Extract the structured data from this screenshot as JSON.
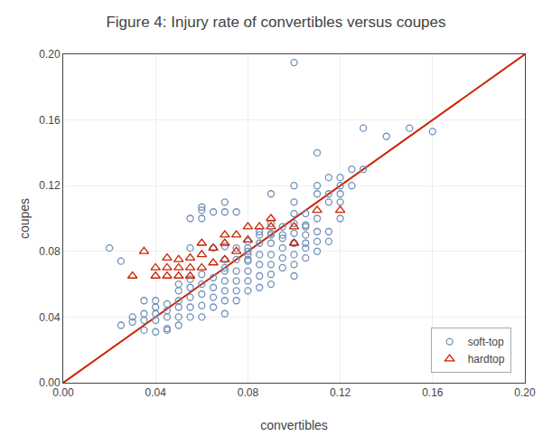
{
  "chart_data": {
    "type": "scatter",
    "title": "Figure 4: Injury rate of convertibles versus coupes",
    "xlabel": "convertibles",
    "ylabel": "coupes",
    "xlim": [
      0.0,
      0.2
    ],
    "ylim": [
      0.0,
      0.2
    ],
    "xticks": [
      {
        "value": 0.0,
        "label": "0.00"
      },
      0.04,
      0.08,
      0.12,
      0.16,
      {
        "value": 0.2,
        "label": "0.20"
      }
    ],
    "yticks": [
      {
        "value": 0.0,
        "label": "0.00"
      },
      0.04,
      0.08,
      0.12,
      0.16,
      {
        "value": 0.2,
        "label": "0.20"
      }
    ],
    "grid": true,
    "legend": "lower right",
    "series": [
      {
        "name": "soft-top",
        "type": "scatter",
        "color": "#7090b8",
        "marker": "circle-open",
        "x": [
          0.02,
          0.025,
          0.03,
          0.03,
          0.035,
          0.035,
          0.035,
          0.04,
          0.04,
          0.04,
          0.04,
          0.04,
          0.045,
          0.045,
          0.045,
          0.045,
          0.05,
          0.05,
          0.05,
          0.05,
          0.05,
          0.05,
          0.055,
          0.055,
          0.055,
          0.055,
          0.055,
          0.055,
          0.06,
          0.06,
          0.06,
          0.06,
          0.06,
          0.06,
          0.065,
          0.065,
          0.065,
          0.065,
          0.065,
          0.07,
          0.07,
          0.07,
          0.07,
          0.07,
          0.07,
          0.07,
          0.07,
          0.075,
          0.075,
          0.075,
          0.075,
          0.075,
          0.075,
          0.08,
          0.08,
          0.08,
          0.08,
          0.08,
          0.08,
          0.08,
          0.085,
          0.085,
          0.085,
          0.085,
          0.085,
          0.085,
          0.09,
          0.09,
          0.09,
          0.09,
          0.09,
          0.09,
          0.09,
          0.09,
          0.095,
          0.095,
          0.095,
          0.095,
          0.095,
          0.1,
          0.1,
          0.1,
          0.1,
          0.1,
          0.1,
          0.1,
          0.1,
          0.1,
          0.105,
          0.105,
          0.105,
          0.105,
          0.105,
          0.11,
          0.11,
          0.11,
          0.11,
          0.11,
          0.115,
          0.115,
          0.115,
          0.12,
          0.12,
          0.12,
          0.12,
          0.125,
          0.125,
          0.13,
          0.13,
          0.14,
          0.15,
          0.16,
          0.11,
          0.1,
          0.08,
          0.06,
          0.055,
          0.045,
          0.07,
          0.075,
          0.065,
          0.085,
          0.09,
          0.095,
          0.105,
          0.11,
          0.115,
          0.105,
          0.115,
          0.12,
          0.1,
          0.06,
          0.07,
          0.08,
          0.025,
          0.035
        ],
        "values": [
          0.082,
          0.074,
          0.04,
          0.037,
          0.038,
          0.042,
          0.05,
          0.038,
          0.042,
          0.046,
          0.05,
          0.031,
          0.04,
          0.044,
          0.048,
          0.033,
          0.035,
          0.04,
          0.046,
          0.05,
          0.056,
          0.06,
          0.04,
          0.046,
          0.052,
          0.058,
          0.063,
          0.1,
          0.04,
          0.047,
          0.054,
          0.06,
          0.066,
          0.105,
          0.046,
          0.052,
          0.058,
          0.064,
          0.104,
          0.042,
          0.05,
          0.056,
          0.062,
          0.068,
          0.075,
          0.083,
          0.11,
          0.05,
          0.056,
          0.062,
          0.068,
          0.075,
          0.082,
          0.056,
          0.062,
          0.068,
          0.074,
          0.08,
          0.086,
          0.082,
          0.058,
          0.065,
          0.072,
          0.078,
          0.085,
          0.092,
          0.06,
          0.066,
          0.072,
          0.078,
          0.085,
          0.091,
          0.097,
          0.115,
          0.07,
          0.076,
          0.082,
          0.088,
          0.095,
          0.065,
          0.072,
          0.078,
          0.085,
          0.091,
          0.097,
          0.103,
          0.11,
          0.12,
          0.076,
          0.082,
          0.09,
          0.096,
          0.103,
          0.08,
          0.086,
          0.092,
          0.1,
          0.115,
          0.086,
          0.092,
          0.115,
          0.1,
          0.11,
          0.12,
          0.115,
          0.12,
          0.13,
          0.13,
          0.155,
          0.15,
          0.155,
          0.153,
          0.14,
          0.085,
          0.075,
          0.1,
          0.082,
          0.032,
          0.104,
          0.104,
          0.082,
          0.09,
          0.09,
          0.09,
          0.085,
          0.12,
          0.125,
          0.095,
          0.11,
          0.125,
          0.195,
          0.107,
          0.07,
          0.078,
          0.035,
          0.032
        ]
      },
      {
        "name": "hardtop",
        "type": "scatter",
        "color": "#cc2200",
        "marker": "triangle-up-open",
        "x": [
          0.03,
          0.035,
          0.04,
          0.04,
          0.045,
          0.045,
          0.045,
          0.05,
          0.05,
          0.05,
          0.055,
          0.055,
          0.055,
          0.06,
          0.06,
          0.06,
          0.065,
          0.065,
          0.07,
          0.07,
          0.07,
          0.075,
          0.075,
          0.08,
          0.08,
          0.085,
          0.09,
          0.09,
          0.1,
          0.1,
          0.11,
          0.12
        ],
        "values": [
          0.065,
          0.08,
          0.065,
          0.07,
          0.065,
          0.07,
          0.076,
          0.065,
          0.07,
          0.075,
          0.065,
          0.07,
          0.076,
          0.07,
          0.078,
          0.085,
          0.073,
          0.082,
          0.075,
          0.085,
          0.09,
          0.08,
          0.09,
          0.087,
          0.095,
          0.095,
          0.095,
          0.1,
          0.085,
          0.095,
          0.105,
          0.105
        ]
      },
      {
        "type": "line",
        "color": "#cc2200",
        "line_style": "solid",
        "x": [
          0.0,
          0.2
        ],
        "values": [
          0.0,
          0.2
        ]
      }
    ]
  }
}
